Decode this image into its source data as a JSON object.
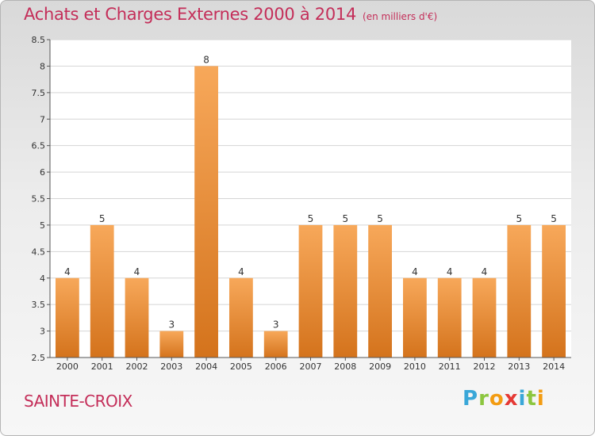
{
  "title": "Achats et Charges Externes 2000 à 2014",
  "subtitle": "(en milliers d'€)",
  "footer_label": "SAINTE-CROIX",
  "logo_text": "Proxiti",
  "colors": {
    "title": "#c42e59",
    "bar_light": "#f7a85a",
    "bar_dark": "#d4731c",
    "grid": "#d5d5d5"
  },
  "chart_data": {
    "type": "bar",
    "categories": [
      "2000",
      "2001",
      "2002",
      "2003",
      "2004",
      "2005",
      "2006",
      "2007",
      "2008",
      "2009",
      "2010",
      "2011",
      "2012",
      "2013",
      "2014"
    ],
    "values": [
      4,
      5,
      4,
      3,
      8,
      4,
      3,
      5,
      5,
      5,
      4,
      4,
      4,
      5,
      5
    ],
    "data_labels": [
      "4",
      "5",
      "4",
      "3",
      "8",
      "4",
      "3",
      "5",
      "5",
      "5",
      "4",
      "4",
      "4",
      "5",
      "5"
    ],
    "yticks": [
      "2.5",
      "3",
      "3.5",
      "4",
      "4.5",
      "5",
      "5.5",
      "6",
      "6.5",
      "7",
      "7.5",
      "8",
      "8.5"
    ],
    "ylim": [
      2.5,
      8.5
    ],
    "grid": true,
    "legend": "none"
  }
}
